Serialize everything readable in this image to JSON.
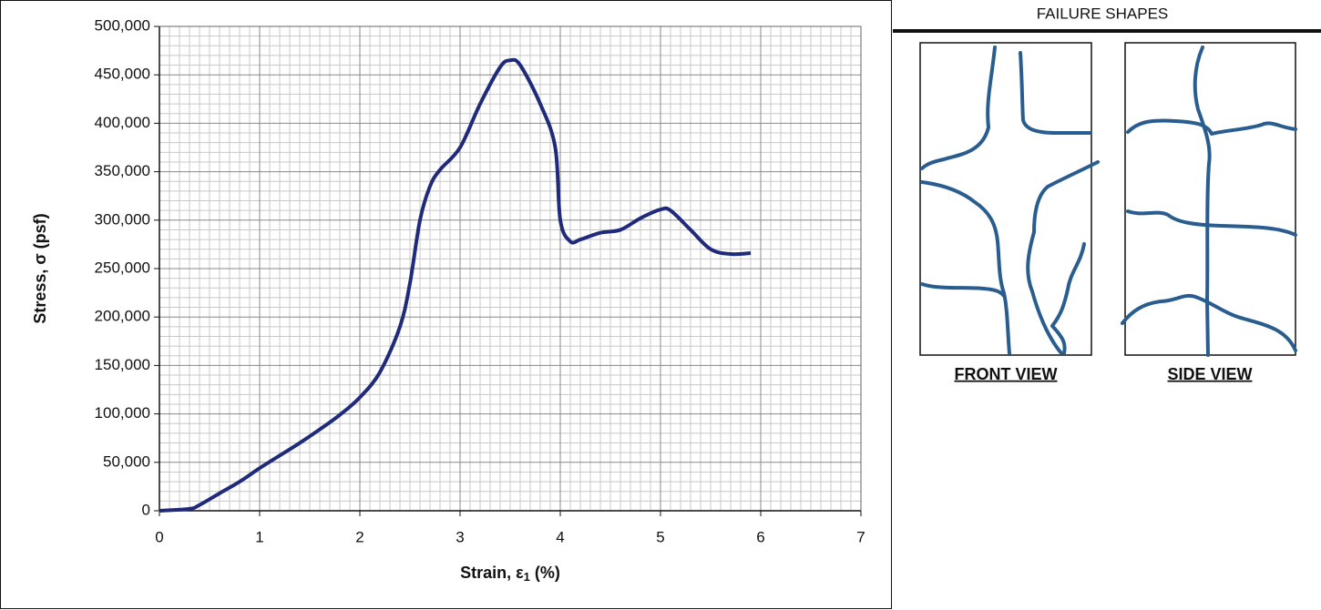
{
  "chart_data": {
    "type": "line",
    "x_label": [
      "Strain, ε",
      "1",
      " (%)"
    ],
    "y_label": "Stress, σ (psf)",
    "series": [
      {
        "name": "Stress-strain",
        "color": "#1f2a7a",
        "x": [
          0,
          0.3,
          0.4,
          0.6,
          0.8,
          1.0,
          1.2,
          1.4,
          1.6,
          1.8,
          2.0,
          2.2,
          2.4,
          2.5,
          2.6,
          2.7,
          2.8,
          3.0,
          3.2,
          3.4,
          3.5,
          3.6,
          3.8,
          3.95,
          4.0,
          4.1,
          4.2,
          4.4,
          4.6,
          4.8,
          5.0,
          5.1,
          5.3,
          5.5,
          5.7,
          5.9
        ],
        "values": [
          0,
          2000,
          6000,
          18000,
          30000,
          44000,
          57000,
          70000,
          84000,
          99000,
          117000,
          143000,
          190000,
          235000,
          300000,
          335000,
          352000,
          375000,
          420000,
          458000,
          465000,
          460000,
          420000,
          375000,
          300000,
          278000,
          280000,
          287000,
          290000,
          302000,
          311000,
          310000,
          290000,
          270000,
          265000,
          266000
        ]
      }
    ],
    "xlim": [
      0,
      7
    ],
    "xticks": [
      0,
      1,
      2,
      3,
      4,
      5,
      6,
      7
    ],
    "ylim": [
      0,
      500000
    ],
    "yticks": [
      0,
      {
        "value": 50000,
        "label": "50,000"
      },
      {
        "value": 100000,
        "label": "100,000"
      },
      {
        "value": 150000,
        "label": "150,000"
      },
      {
        "value": 200000,
        "label": "200,000"
      },
      {
        "value": 250000,
        "label": "250,000"
      },
      {
        "value": 300000,
        "label": "300,000"
      },
      {
        "value": 350000,
        "label": "350,000"
      },
      {
        "value": 400000,
        "label": "400,000"
      },
      {
        "value": 450000,
        "label": "450,000"
      },
      {
        "value": 500000,
        "label": "500,000"
      }
    ],
    "grid": true
  },
  "failure_shapes": {
    "title": "FAILURE SHAPES",
    "views": [
      "FRONT VIEW",
      "SIDE VIEW"
    ]
  }
}
